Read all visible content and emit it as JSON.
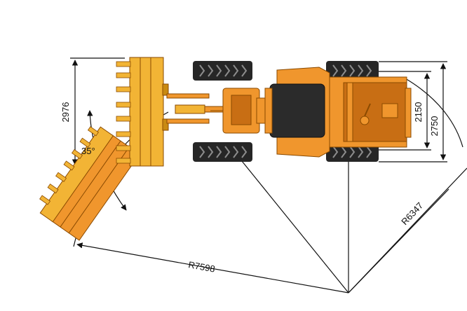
{
  "dimensions": {
    "bucket_width": "2976",
    "articulation_angle": "35°",
    "track_width": "2150",
    "overall_width": "2750",
    "outer_turning_radius": "R7598",
    "inner_turning_radius": "R6347"
  },
  "colors": {
    "machine_body": "#F0962D",
    "machine_body_dark": "#C86E14",
    "bucket": "#F2B435",
    "bucket_dark": "#C98A12",
    "tire": "#262626",
    "cab": "#2B2B2B",
    "line": "#111111"
  }
}
